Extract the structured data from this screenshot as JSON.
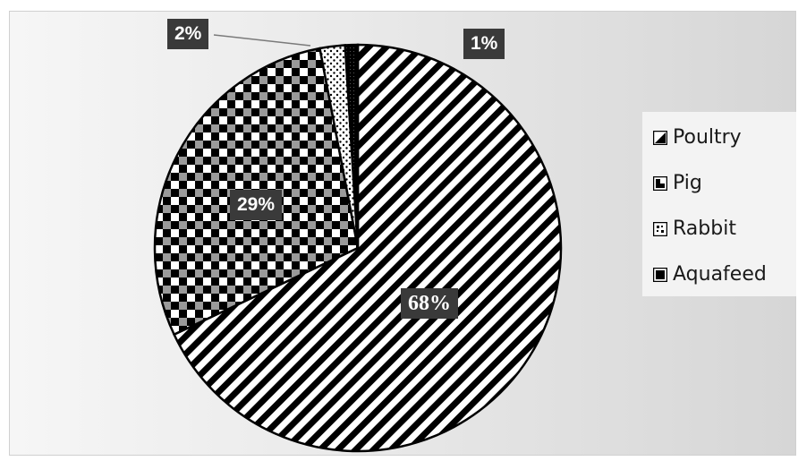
{
  "chart_data": {
    "type": "pie",
    "title": "",
    "categories": [
      "Poultry",
      "Pig",
      "Rabbit",
      "Aquafeed"
    ],
    "values": [
      68,
      29,
      2,
      1
    ],
    "labels": [
      "68%",
      "29%",
      "2%",
      "1%"
    ],
    "legend_position": "right",
    "start_clockwise_from_top": true
  },
  "legend": {
    "items": [
      {
        "label": "Poultry",
        "pattern": "diagonal-stripes"
      },
      {
        "label": "Pig",
        "pattern": "checkerboard"
      },
      {
        "label": "Rabbit",
        "pattern": "dots"
      },
      {
        "label": "Aquafeed",
        "pattern": "solid-black"
      }
    ]
  },
  "colors": {
    "label_background": "#3a3a3a",
    "label_text": "#ffffff",
    "stroke": "#000000"
  }
}
